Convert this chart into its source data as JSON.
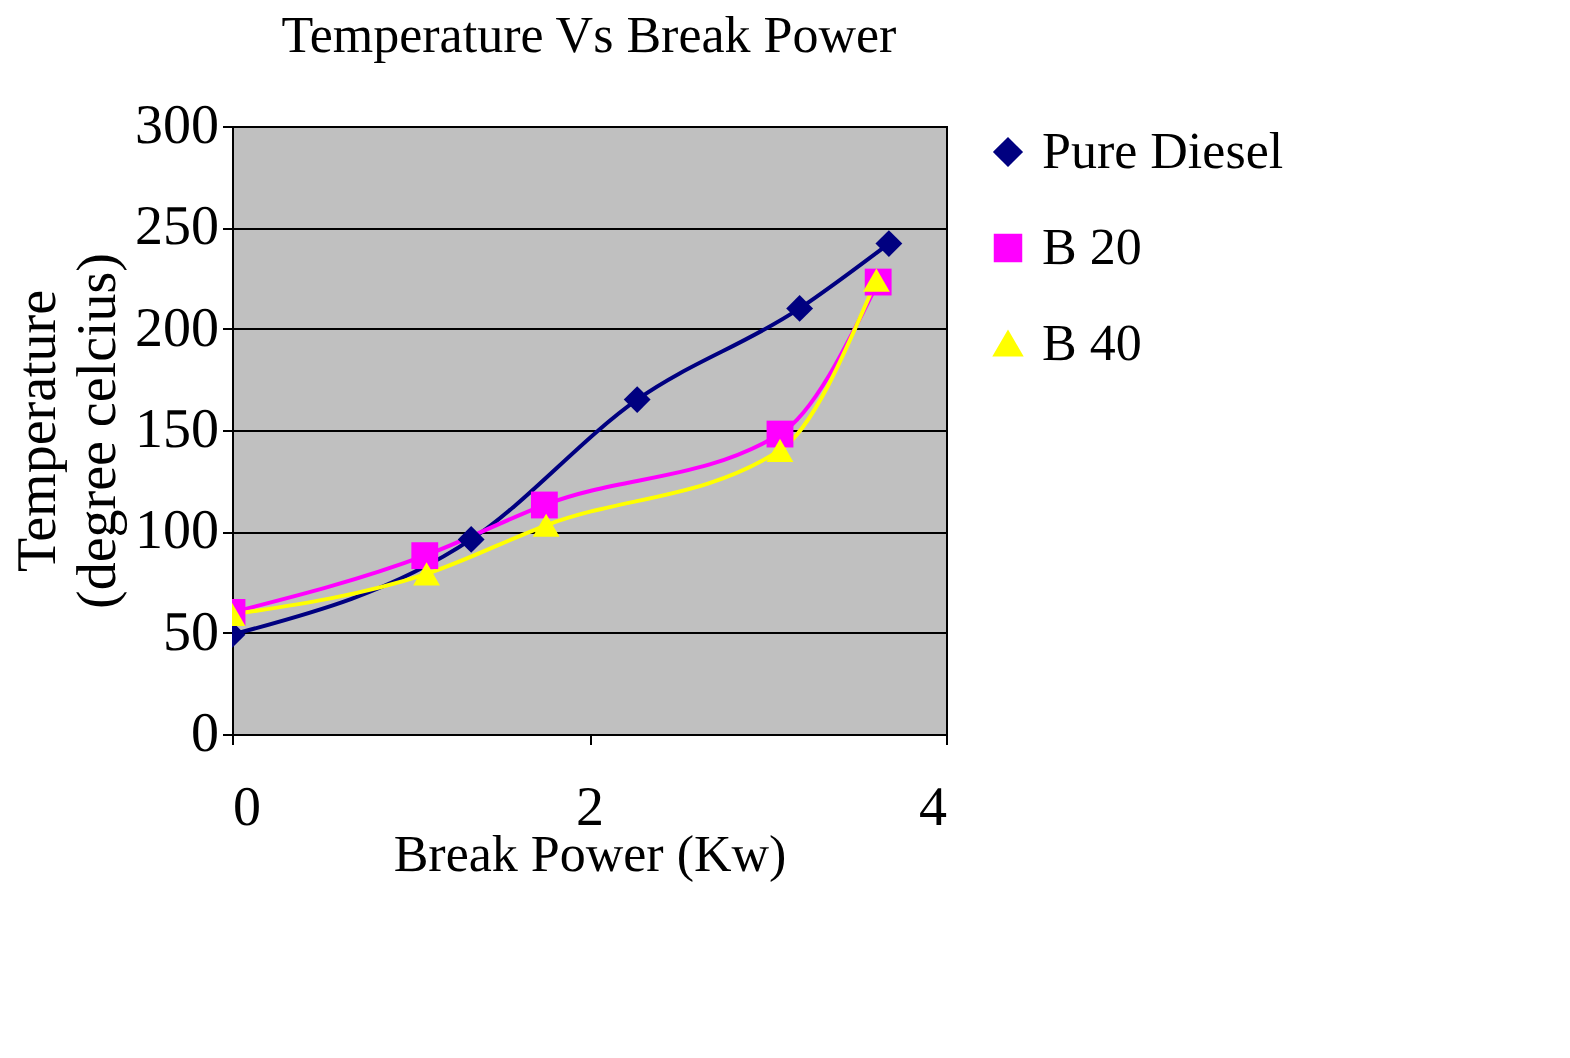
{
  "chart_data": {
    "type": "line",
    "title": "Temperature Vs Break Power",
    "xlabel": "Break Power (Kw)",
    "ylabel": "Temperature (degree celcius)",
    "series": [
      {
        "name": "Pure Diesel",
        "color": "#000080",
        "marker": "diamond",
        "x": [
          0,
          1.34,
          2.27,
          3.18,
          3.68
        ],
        "values": [
          49,
          96,
          165,
          210,
          242
        ]
      },
      {
        "name": "B 20",
        "color": "#ff00ff",
        "marker": "square",
        "x": [
          0,
          1.08,
          1.75,
          3.07,
          3.62
        ],
        "values": [
          60,
          88,
          113,
          148,
          223
        ]
      },
      {
        "name": "B 40",
        "color": "#ffff00",
        "marker": "triangle",
        "x": [
          0,
          1.09,
          1.76,
          3.07,
          3.61
        ],
        "values": [
          59,
          79,
          103,
          140,
          224
        ]
      }
    ],
    "xlim": [
      0,
      4
    ],
    "xticks": [
      0,
      2,
      4
    ],
    "ylim": [
      0,
      300
    ],
    "yticks": [
      0,
      50,
      100,
      150,
      200,
      250,
      300
    ],
    "grid": "y",
    "legend": "right",
    "line_style": "solid"
  }
}
